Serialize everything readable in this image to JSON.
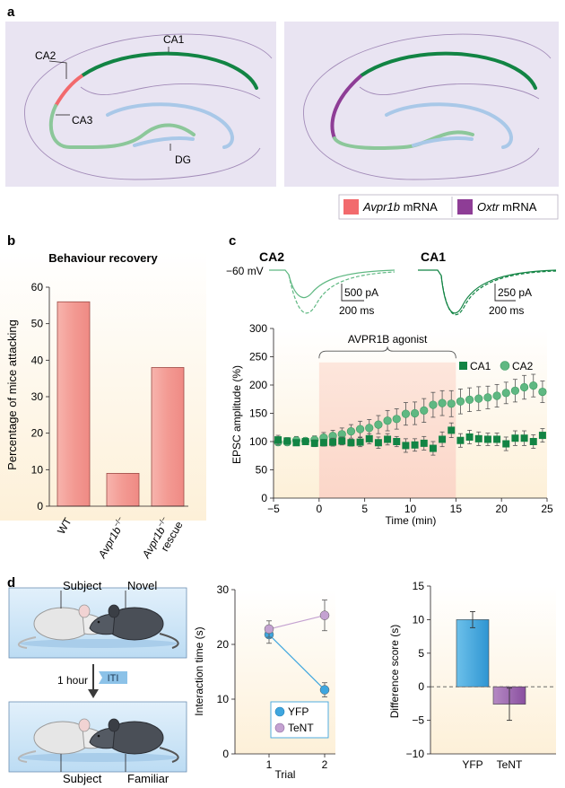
{
  "panel_a": {
    "label": "a",
    "region_labels": {
      "ca1": "CA1",
      "ca2": "CA2",
      "ca3": "CA3",
      "dg": "DG"
    },
    "legend": [
      {
        "italic": "Avpr1b",
        "rest": " mRNA",
        "color": "#f26a6d"
      },
      {
        "italic": "Oxtr",
        "rest": " mRNA",
        "color": "#8e3d96"
      }
    ],
    "colors": {
      "ca1": "#128444",
      "ca3": "#8cc79a",
      "dg": "#a9c8e8",
      "bg": "#e9e4f2"
    }
  },
  "panel_b": {
    "label": "b",
    "chart_data": {
      "type": "bar",
      "title": "Behaviour recovery",
      "ylabel": "Percentage of mice attacking",
      "ylim": [
        0,
        60
      ],
      "yticks": [
        0,
        10,
        20,
        30,
        40,
        50,
        60
      ],
      "categories": [
        "WT",
        "Avpr1b",
        "Avpr1b"
      ],
      "category_sup": [
        "",
        "−/−",
        "−/−"
      ],
      "category_sub2": [
        "",
        "",
        "rescue"
      ],
      "values": [
        56,
        9,
        38
      ],
      "bar_color": "#f6a5a0"
    }
  },
  "panel_c": {
    "label": "c",
    "traces": {
      "ca2_label": "CA2",
      "ca1_label": "CA1",
      "holding": "−60 mV",
      "ca2_scale_y": "500 pA",
      "ca2_scale_x": "200 ms",
      "ca1_scale_y": "250 pA",
      "ca1_scale_x": "200 ms",
      "ca2_color": "#5fb882",
      "ca1_color": "#128444"
    },
    "chart_data": {
      "type": "scatter",
      "xlabel": "Time (min)",
      "ylabel": "EPSC amplitude (%)",
      "xlim": [
        -5,
        25
      ],
      "ylim": [
        0,
        300
      ],
      "xticks": [
        -5,
        0,
        5,
        10,
        15,
        20,
        25
      ],
      "yticks": [
        0,
        50,
        100,
        150,
        200,
        250,
        300
      ],
      "annotation": "AVPR1B agonist",
      "shade": [
        0,
        15
      ],
      "series": [
        {
          "name": "CA1",
          "color": "#128444",
          "marker": "square",
          "x": [
            -4.5,
            -3.5,
            -2.5,
            -1.5,
            -0.5,
            0.5,
            1.5,
            2.5,
            3.5,
            4.5,
            5.5,
            6.5,
            7.5,
            8.5,
            9.5,
            10.5,
            11.5,
            12.5,
            13.5,
            14.5,
            15.5,
            16.5,
            17.5,
            18.5,
            19.5,
            20.5,
            21.5,
            22.5,
            23.5,
            24.5
          ],
          "y": [
            103,
            101,
            98,
            100,
            97,
            98,
            99,
            101,
            98,
            99,
            105,
            98,
            104,
            100,
            93,
            94,
            97,
            88,
            104,
            120,
            102,
            108,
            105,
            104,
            104,
            96,
            106,
            106,
            100,
            111
          ],
          "err": [
            8,
            6,
            5,
            5,
            6,
            6,
            7,
            7,
            6,
            8,
            9,
            10,
            10,
            9,
            12,
            11,
            12,
            12,
            13,
            13,
            12,
            12,
            12,
            11,
            11,
            12,
            13,
            13,
            12,
            12
          ]
        },
        {
          "name": "CA2",
          "color": "#5fb882",
          "marker": "circle",
          "x": [
            -4.5,
            -3.5,
            -2.5,
            -1.5,
            -0.5,
            0.5,
            1.5,
            2.5,
            3.5,
            4.5,
            5.5,
            6.5,
            7.5,
            8.5,
            9.5,
            10.5,
            11.5,
            12.5,
            13.5,
            14.5,
            15.5,
            16.5,
            17.5,
            18.5,
            19.5,
            20.5,
            21.5,
            22.5,
            23.5,
            24.5
          ],
          "y": [
            99,
            99,
            102,
            101,
            103,
            107,
            110,
            113,
            118,
            122,
            124,
            130,
            137,
            140,
            149,
            150,
            155,
            165,
            168,
            167,
            171,
            174,
            176,
            178,
            181,
            186,
            190,
            196,
            199,
            188
          ],
          "err": [
            6,
            6,
            7,
            6,
            7,
            9,
            10,
            11,
            12,
            14,
            15,
            16,
            18,
            18,
            20,
            20,
            21,
            22,
            22,
            23,
            22,
            21,
            21,
            20,
            20,
            19,
            20,
            21,
            20,
            19
          ]
        }
      ]
    }
  },
  "panel_d": {
    "label": "d",
    "schematic": {
      "subject_top": "Subject",
      "novel": "Novel",
      "interval": "1 hour",
      "iti": "ITI",
      "subject_bottom": "Subject",
      "familiar": "Familiar"
    },
    "interaction_chart": {
      "type": "line",
      "xlabel": "Trial",
      "ylabel": "Interaction time (s)",
      "ylim": [
        0,
        30
      ],
      "yticks": [
        0,
        10,
        20,
        30
      ],
      "x": [
        1,
        2
      ],
      "series": [
        {
          "name": "YFP",
          "color": "#3ea6df",
          "values": [
            21.8,
            11.7
          ],
          "err": [
            1.6,
            1.3
          ]
        },
        {
          "name": "TeNT",
          "color": "#c4a2d1",
          "values": [
            22.8,
            25.3
          ],
          "err": [
            1.5,
            2.8
          ]
        }
      ]
    },
    "difference_chart": {
      "type": "bar",
      "ylabel": "Difference score (s)",
      "ylim": [
        -10,
        15
      ],
      "yticks": [
        -10,
        -5,
        0,
        5,
        10,
        15
      ],
      "categories": [
        "YFP",
        "TeNT"
      ],
      "values": [
        10.0,
        -2.6
      ],
      "err": [
        1.2,
        2.4
      ],
      "colors": [
        "#3ea6df",
        "#9a64ad"
      ]
    }
  }
}
